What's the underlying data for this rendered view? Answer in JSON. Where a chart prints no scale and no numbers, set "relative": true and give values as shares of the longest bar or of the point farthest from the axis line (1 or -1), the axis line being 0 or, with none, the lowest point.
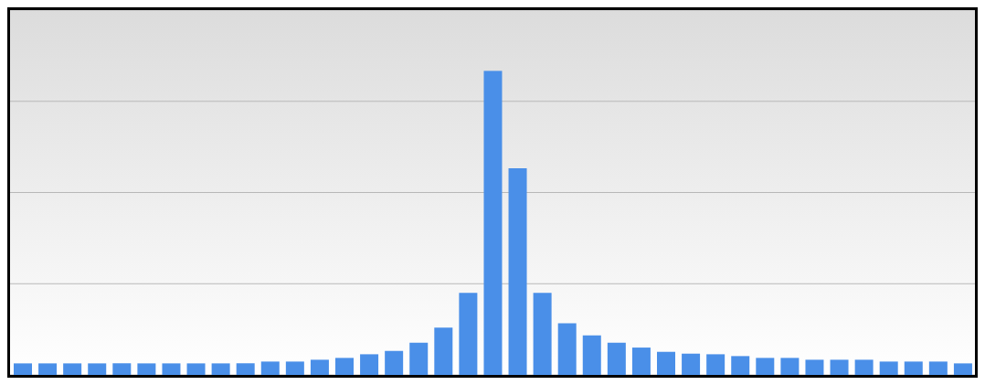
{
  "chart_data": {
    "type": "bar",
    "relative": true,
    "grid": "y",
    "color": "#4a8fe8",
    "categories": [
      null,
      null,
      null,
      null,
      null,
      null,
      null,
      null,
      null,
      null,
      null,
      null,
      null,
      null,
      null,
      null,
      null,
      null,
      null,
      null,
      null,
      null,
      null,
      null,
      null,
      null,
      null,
      null,
      null,
      null,
      null,
      null,
      null,
      null,
      null,
      null,
      null,
      null,
      null
    ],
    "values": [
      0.038,
      0.038,
      0.038,
      0.038,
      0.038,
      0.038,
      0.038,
      0.038,
      0.038,
      0.038,
      0.044,
      0.044,
      0.05,
      0.056,
      0.068,
      0.079,
      0.106,
      0.156,
      0.27,
      1,
      0.68,
      0.27,
      0.17,
      0.13,
      0.106,
      0.09,
      0.076,
      0.07,
      0.068,
      0.062,
      0.056,
      0.056,
      0.05,
      0.05,
      0.05,
      0.044,
      0.044,
      0.044,
      0.038
    ]
  }
}
